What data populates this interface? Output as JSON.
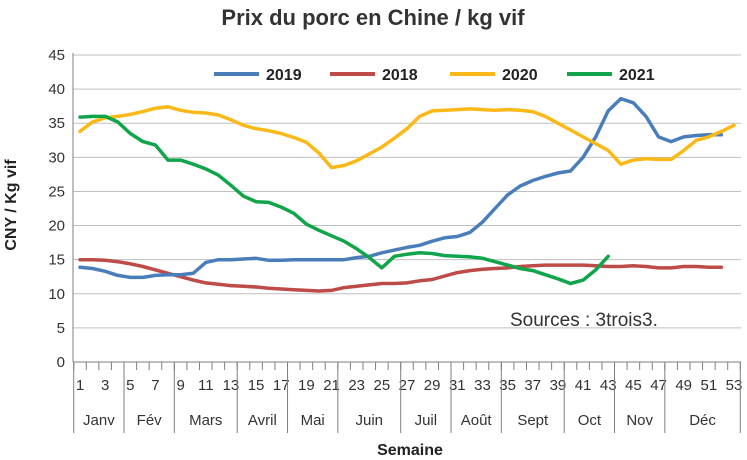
{
  "chart_data": {
    "type": "line",
    "title": "Prix du porc en Chine / kg vif",
    "xlabel": "Semaine",
    "ylabel": "CNY / Kg vif",
    "ylim": [
      0,
      45
    ],
    "yticks": [
      "0",
      "5",
      "10",
      "15",
      "20",
      "25",
      "30",
      "35",
      "40",
      "45"
    ],
    "xlim": [
      1,
      53
    ],
    "xticks": [
      "1",
      "3",
      "5",
      "7",
      "9",
      "11",
      "13",
      "15",
      "17",
      "19",
      "21",
      "23",
      "25",
      "27",
      "29",
      "31",
      "33",
      "35",
      "37",
      "39",
      "41",
      "43",
      "45",
      "47",
      "49",
      "51",
      "53"
    ],
    "months": [
      "Janv",
      "Fév",
      "Mars",
      "Avril",
      "Mai",
      "Juin",
      "Juil",
      "Août",
      "Sept",
      "Oct",
      "Nov",
      "Déc"
    ],
    "grid": true,
    "legend_position": "top",
    "annotation": "Sources : 3trois3.",
    "series": [
      {
        "name": "2019",
        "color": "#4a7ebb",
        "x": [
          1,
          2,
          3,
          4,
          5,
          6,
          7,
          8,
          9,
          10,
          11,
          12,
          13,
          14,
          15,
          16,
          17,
          18,
          19,
          20,
          21,
          22,
          23,
          24,
          25,
          26,
          27,
          28,
          29,
          30,
          31,
          32,
          33,
          34,
          35,
          36,
          37,
          38,
          39,
          40,
          41,
          42,
          43,
          44,
          45,
          46,
          47,
          48,
          49,
          50,
          51,
          52
        ],
        "values": [
          13.9,
          13.7,
          13.3,
          12.7,
          12.4,
          12.4,
          12.7,
          12.8,
          12.8,
          13.0,
          14.6,
          15.0,
          15.0,
          15.1,
          15.2,
          14.9,
          14.9,
          15.0,
          15.0,
          15.0,
          15.0,
          15.0,
          15.3,
          15.5,
          16.0,
          16.4,
          16.8,
          17.1,
          17.7,
          18.2,
          18.4,
          19.0,
          20.5,
          22.5,
          24.5,
          25.8,
          26.6,
          27.2,
          27.7,
          28.0,
          30.0,
          33.0,
          36.8,
          38.6,
          38.0,
          36.0,
          33.0,
          32.3,
          33.0,
          33.2,
          33.3,
          33.3
        ]
      },
      {
        "name": "2018",
        "color": "#be4b48",
        "x": [
          1,
          2,
          3,
          4,
          5,
          6,
          7,
          8,
          9,
          10,
          11,
          12,
          13,
          14,
          15,
          16,
          17,
          18,
          19,
          20,
          21,
          22,
          23,
          24,
          25,
          26,
          27,
          28,
          29,
          30,
          31,
          32,
          33,
          34,
          35,
          36,
          37,
          38,
          39,
          40,
          41,
          42,
          43,
          44,
          45,
          46,
          47,
          48,
          49,
          50,
          51,
          52
        ],
        "values": [
          15.0,
          15.0,
          14.9,
          14.7,
          14.4,
          14.0,
          13.5,
          13.0,
          12.5,
          12.0,
          11.6,
          11.4,
          11.2,
          11.1,
          11.0,
          10.8,
          10.7,
          10.6,
          10.5,
          10.4,
          10.5,
          10.9,
          11.1,
          11.3,
          11.5,
          11.5,
          11.6,
          11.9,
          12.1,
          12.6,
          13.1,
          13.4,
          13.6,
          13.7,
          13.8,
          14.0,
          14.1,
          14.2,
          14.2,
          14.2,
          14.2,
          14.1,
          14.0,
          14.0,
          14.1,
          14.0,
          13.8,
          13.8,
          14.0,
          14.0,
          13.9,
          13.9
        ]
      },
      {
        "name": "2020",
        "color": "#fbb917",
        "x": [
          1,
          2,
          3,
          4,
          5,
          6,
          7,
          8,
          9,
          10,
          11,
          12,
          13,
          14,
          15,
          16,
          17,
          18,
          19,
          20,
          21,
          22,
          23,
          24,
          25,
          26,
          27,
          28,
          29,
          30,
          31,
          32,
          33,
          34,
          35,
          36,
          37,
          38,
          39,
          40,
          41,
          42,
          43,
          44,
          45,
          46,
          47,
          48,
          49,
          50,
          51,
          52,
          53
        ],
        "values": [
          33.8,
          35.2,
          35.8,
          36.0,
          36.3,
          36.7,
          37.2,
          37.4,
          36.9,
          36.6,
          36.5,
          36.2,
          35.5,
          34.7,
          34.2,
          33.9,
          33.5,
          32.9,
          32.2,
          30.6,
          28.5,
          28.8,
          29.5,
          30.5,
          31.5,
          32.8,
          34.2,
          36.0,
          36.8,
          36.9,
          37.0,
          37.1,
          37.0,
          36.9,
          37.0,
          36.9,
          36.7,
          36.0,
          35.0,
          34.0,
          33.0,
          32.0,
          31.0,
          29.0,
          29.6,
          29.8,
          29.7,
          29.7,
          31.0,
          32.5,
          33.0,
          33.8,
          34.7
        ]
      },
      {
        "name": "2021",
        "color": "#10a54a",
        "x": [
          1,
          2,
          3,
          4,
          5,
          6,
          7,
          8,
          9,
          10,
          11,
          12,
          13,
          14,
          15,
          16,
          17,
          18,
          19,
          20,
          21,
          22,
          23,
          24,
          25,
          26,
          27,
          28,
          29,
          30,
          31,
          32,
          33,
          34,
          35,
          36,
          37,
          38,
          39,
          40,
          41,
          42,
          43
        ],
        "values": [
          35.9,
          36.0,
          36.0,
          35.2,
          33.5,
          32.3,
          31.8,
          29.6,
          29.6,
          29.0,
          28.3,
          27.4,
          25.9,
          24.3,
          23.5,
          23.4,
          22.7,
          21.8,
          20.2,
          19.3,
          18.5,
          17.7,
          16.6,
          15.3,
          13.8,
          15.5,
          15.8,
          16.0,
          15.9,
          15.6,
          15.5,
          15.4,
          15.2,
          14.7,
          14.2,
          13.7,
          13.4,
          12.8,
          12.2,
          11.5,
          12.0,
          13.5,
          15.5
        ]
      }
    ]
  }
}
